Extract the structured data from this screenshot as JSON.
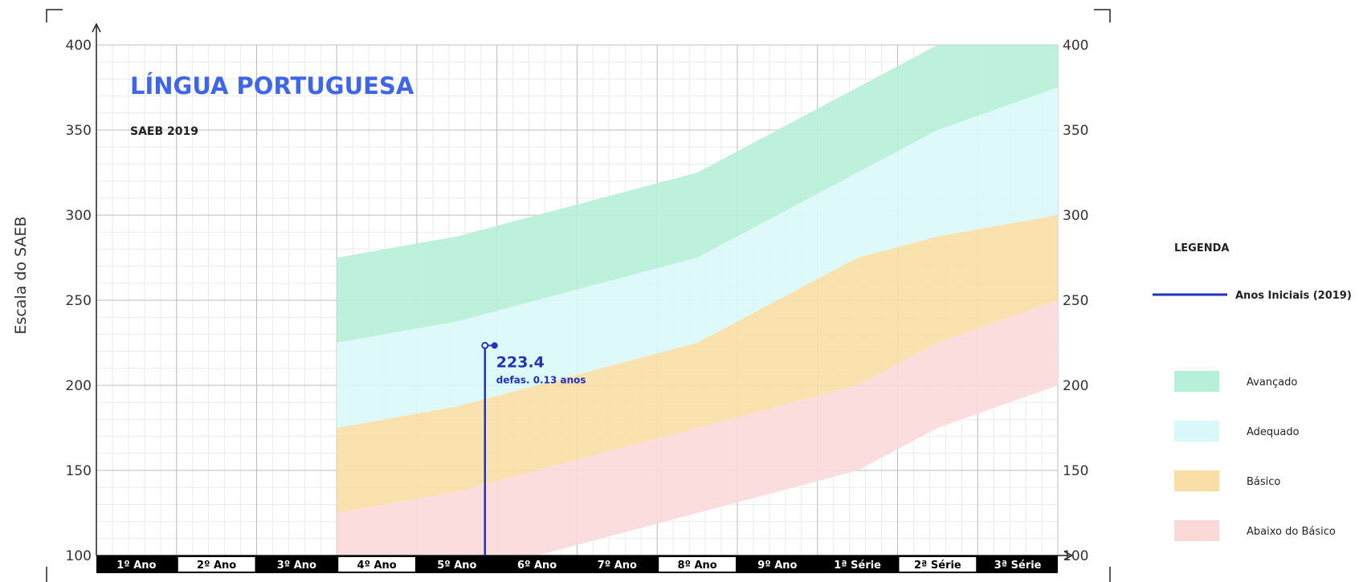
{
  "chart_data": {
    "type": "area",
    "title": "LÍNGUA PORTUGUESA",
    "subtitle": "SAEB 2019",
    "ylabel": "Escala do SAEB",
    "xlabel": "",
    "ylim": [
      100,
      400
    ],
    "yticks": [
      100,
      150,
      200,
      250,
      300,
      350,
      400
    ],
    "grid": true,
    "categories": [
      "1º Ano",
      "2º Ano",
      "3º Ano",
      "4º Ano",
      "5º Ano",
      "6º Ano",
      "7º Ano",
      "8º Ano",
      "9º Ano",
      "1ª Série",
      "2ª Série",
      "3ª Série"
    ],
    "band_x": [
      "4º Ano",
      "5º Ano",
      "6º Ano",
      "7º Ano",
      "8º Ano",
      "9º Ano",
      "1ª Série",
      "2ª Série",
      "3ª Série"
    ],
    "bands": [
      {
        "name": "Avançado",
        "color": "#b7f0d8",
        "lower": [
          225,
          237.5,
          250,
          262.5,
          275,
          300,
          325,
          350,
          375
        ],
        "upper": [
          275,
          287.5,
          300,
          312.5,
          325,
          350,
          375,
          400,
          400
        ]
      },
      {
        "name": "Adequado",
        "color": "#daf8fa",
        "lower": [
          175,
          187.5,
          200,
          212.5,
          225,
          250,
          275,
          287.5,
          300
        ],
        "upper": [
          225,
          237.5,
          250,
          262.5,
          275,
          300,
          325,
          350,
          375
        ]
      },
      {
        "name": "Básico",
        "color": "#f9dfa6",
        "lower": [
          125,
          137.5,
          150,
          162.5,
          175,
          187.5,
          200,
          225,
          250
        ],
        "upper": [
          175,
          187.5,
          200,
          212.5,
          225,
          250,
          275,
          287.5,
          300
        ]
      },
      {
        "name": "Abaixo do Básico",
        "color": "#fcd9d9",
        "lower": [
          100,
          100,
          100,
          112.5,
          125,
          137.5,
          150,
          175,
          200
        ],
        "upper": [
          125,
          137.5,
          150,
          162.5,
          175,
          187.5,
          200,
          225,
          250
        ]
      }
    ],
    "marker": {
      "series": "Anos Iniciais (2019)",
      "x": "5º Ano",
      "value": 223.4,
      "value_label": "223.4",
      "annotation": "defas. 0.13 anos",
      "color": "#2233bb"
    },
    "legend": {
      "title": "LEGENDA",
      "position": "right",
      "line_entry": "Anos Iniciais (2019)",
      "entries": [
        "Avançado",
        "Adequado",
        "Básico",
        "Abaixo do Básico"
      ]
    },
    "colors": {
      "title": "#3f66e8",
      "marker": "#2233bb",
      "grid_minor": "#ececec",
      "grid_major": "#bdbdbd",
      "category_bg": "#000000",
      "category_alt_bg": "#ffffff"
    }
  }
}
